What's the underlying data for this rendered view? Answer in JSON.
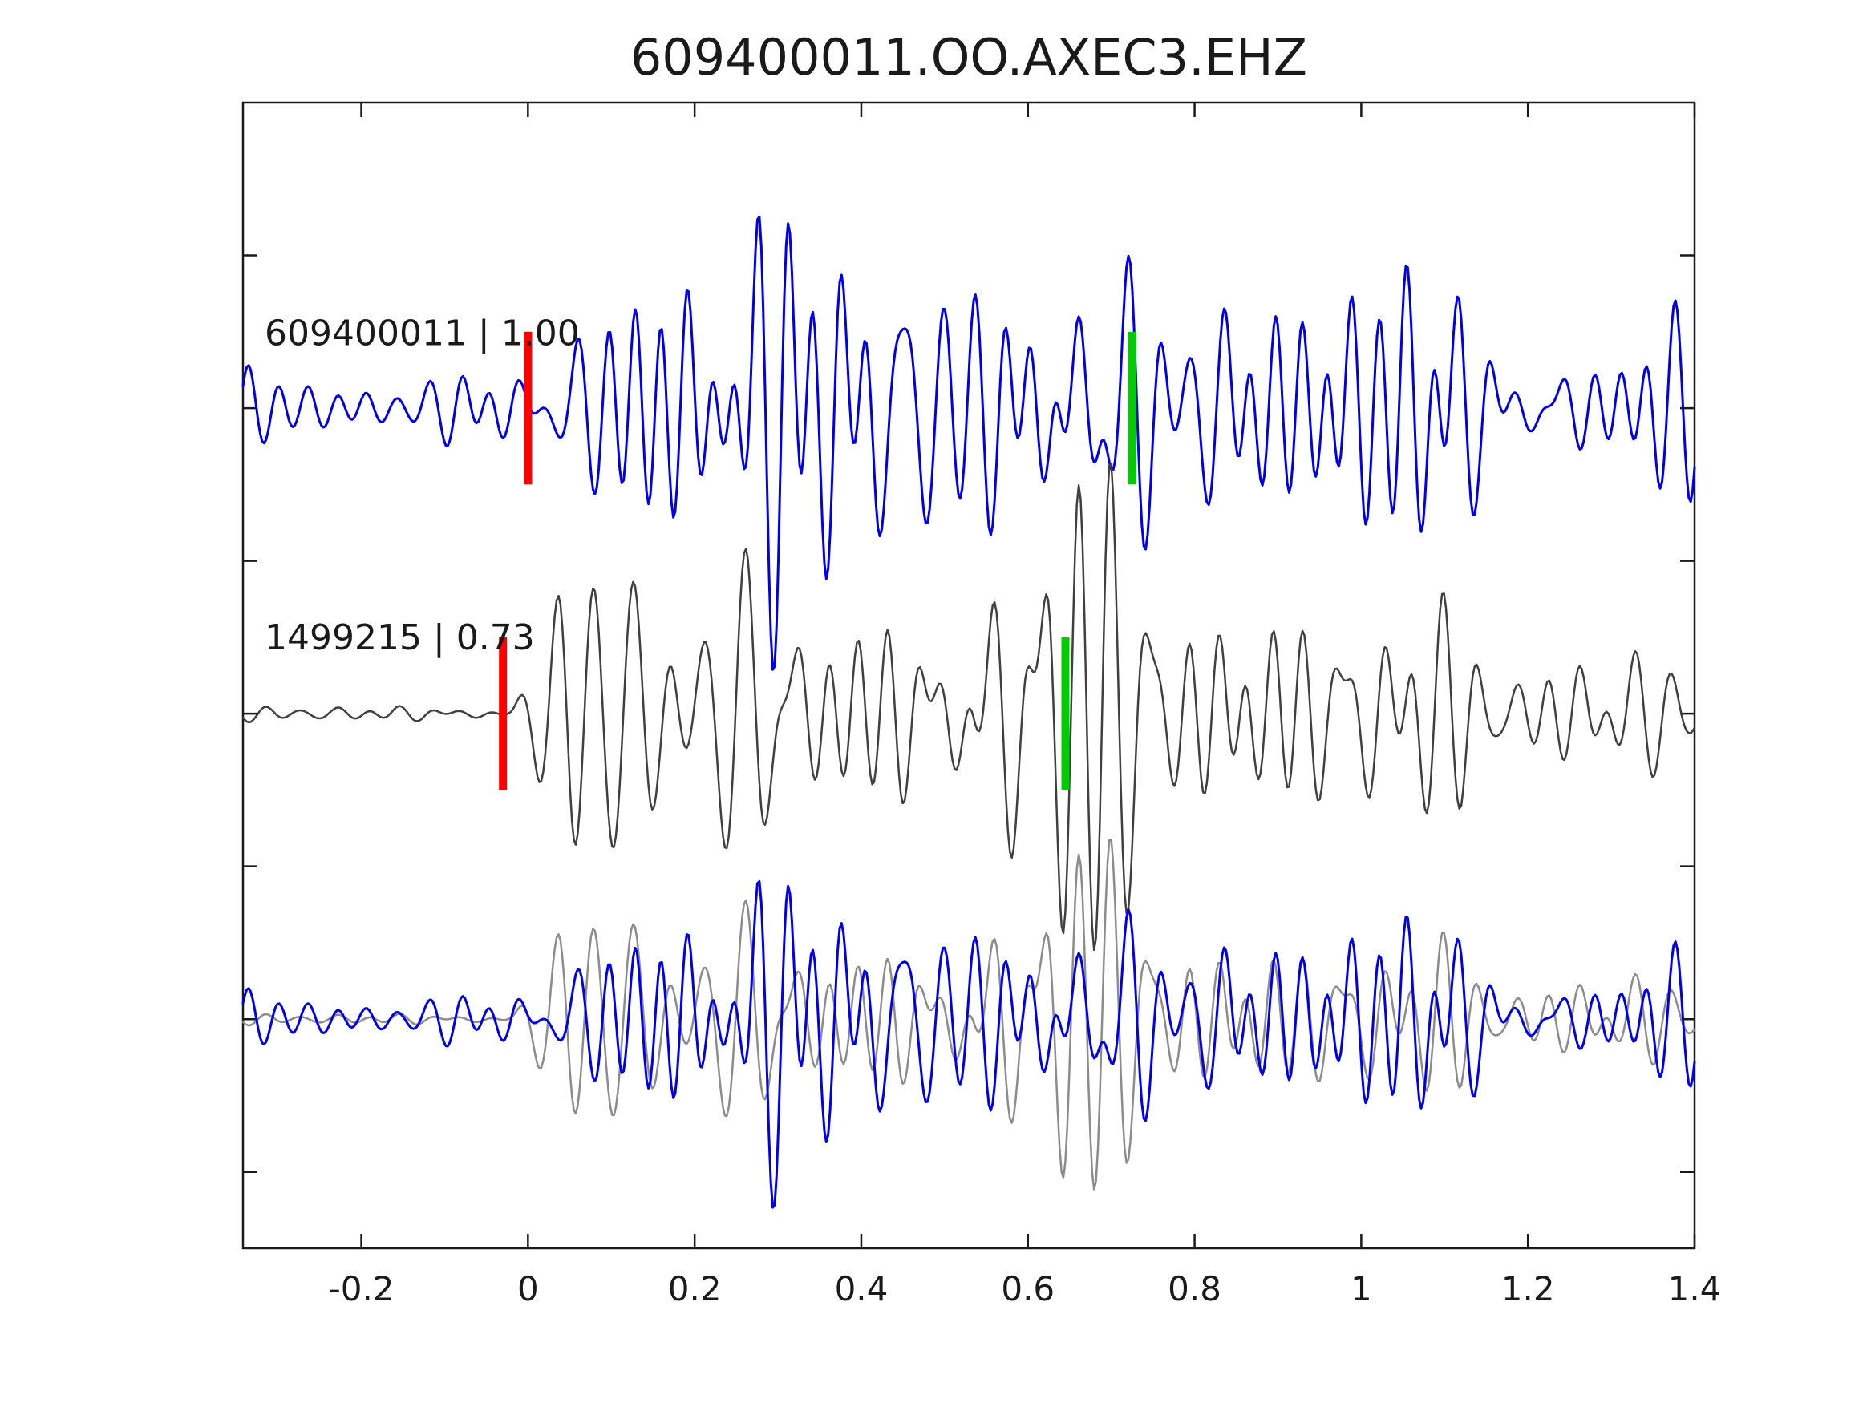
{
  "title": "609400011.OO.AXEC3.EHZ",
  "chart_data": {
    "type": "line",
    "title": "609400011.OO.AXEC3.EHZ",
    "subtitle": "",
    "xlabel": "",
    "ylabel": "",
    "grid": false,
    "legend": false,
    "tick_direction": "in",
    "xlim": [
      -0.342,
      1.4
    ],
    "ylim": [
      -3.5,
      4.0
    ],
    "xticks": [
      -0.2,
      0,
      0.2,
      0.4,
      0.6,
      0.8,
      1,
      1.2,
      1.4
    ],
    "xtick_labels": [
      "-0.2",
      "0",
      "0.2",
      "0.4",
      "0.6",
      "0.8",
      "1",
      "1.2",
      "1.4"
    ],
    "yticks": [
      -3,
      -2,
      -1,
      0,
      1,
      2,
      3
    ],
    "ytick_labels": [],
    "colors": {
      "template_trace": "#0000ee",
      "detection_trace": "#404040",
      "overlay_gray": "#8c8c8c",
      "pick_red": "#ff0000",
      "pick_green": "#00cc00",
      "axis": "#1a1a1a"
    },
    "panels": [
      {
        "name": "template-trace",
        "label": "609400011 | 1.00",
        "label_pos": [
          -0.316,
          2.49
        ],
        "baseline": 2,
        "color": "#0000ee",
        "line_width": 3,
        "seed": 193,
        "freq_range": [
          14,
          34
        ],
        "n_oscillators": 12,
        "n_points": 760,
        "amp_scale": 1,
        "envelope": [
          [
            -0.342,
            0.18
          ],
          [
            -0.2,
            0.18
          ],
          [
            -0.12,
            0.2
          ],
          [
            -0.05,
            0.22
          ],
          [
            0.02,
            0.35
          ],
          [
            0.08,
            0.55
          ],
          [
            0.15,
            1.1
          ],
          [
            0.22,
            1.15
          ],
          [
            0.28,
            1.35
          ],
          [
            0.35,
            1.2
          ],
          [
            0.42,
            1.55
          ],
          [
            0.5,
            1.25
          ],
          [
            0.57,
            1.35
          ],
          [
            0.63,
            1.5
          ],
          [
            0.7,
            1.05
          ],
          [
            0.78,
            0.85
          ],
          [
            0.85,
            0.9
          ],
          [
            0.95,
            0.75
          ],
          [
            1.02,
            0.6
          ],
          [
            1.1,
            0.9
          ],
          [
            1.18,
            0.55
          ],
          [
            1.28,
            0.45
          ],
          [
            1.4,
            0.5
          ]
        ],
        "picks": [
          {
            "name": "red-pick",
            "color": "#ff0000",
            "x": 0.0,
            "y": [
              1.5,
              2.5
            ]
          },
          {
            "name": "green-pick",
            "color": "#00cc00",
            "x": 0.725,
            "y": [
              1.5,
              2.5
            ]
          }
        ]
      },
      {
        "name": "detection-trace",
        "label": "1499215 | 0.73",
        "label_pos": [
          -0.316,
          0.5
        ],
        "baseline": 0,
        "color": "#404040",
        "line_width": 2.5,
        "seed": 555,
        "freq_range": [
          14,
          34
        ],
        "n_oscillators": 12,
        "n_points": 760,
        "amp_scale": 1,
        "envelope": [
          [
            -0.342,
            0.05
          ],
          [
            -0.18,
            0.05
          ],
          [
            -0.08,
            0.07
          ],
          [
            -0.02,
            0.12
          ],
          [
            0.02,
            0.8
          ],
          [
            0.05,
            1.35
          ],
          [
            0.1,
            1.2
          ],
          [
            0.16,
            0.9
          ],
          [
            0.24,
            1.05
          ],
          [
            0.32,
            1.1
          ],
          [
            0.4,
            1.0
          ],
          [
            0.48,
            1.05
          ],
          [
            0.56,
            1.15
          ],
          [
            0.63,
            1.45
          ],
          [
            0.7,
            1.25
          ],
          [
            0.78,
            1.0
          ],
          [
            0.86,
            0.85
          ],
          [
            0.95,
            0.65
          ],
          [
            1.05,
            0.5
          ],
          [
            1.12,
            0.6
          ],
          [
            1.2,
            0.4
          ],
          [
            1.3,
            0.28
          ],
          [
            1.4,
            0.3
          ]
        ],
        "picks": [
          {
            "name": "red-pick",
            "color": "#ff0000",
            "x": -0.03,
            "y": [
              -0.5,
              0.5
            ]
          },
          {
            "name": "green-pick",
            "color": "#00cc00",
            "x": 0.645,
            "y": [
              -0.5,
              0.5
            ]
          }
        ]
      },
      {
        "name": "overlay-panel",
        "label": "",
        "baseline": -2,
        "overlay_of": [
          1,
          0
        ],
        "overlay_colors": [
          "#8c8c8c",
          "#0000ee"
        ],
        "overlay_line_widths": [
          2.5,
          3
        ],
        "amp_scale": 0.72,
        "picks": []
      }
    ]
  }
}
